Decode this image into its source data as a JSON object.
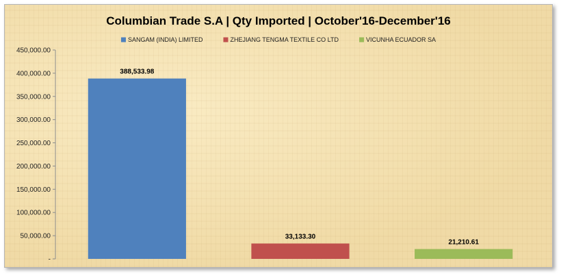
{
  "chart_data": {
    "type": "bar",
    "title": "Columbian Trade S.A | Qty Imported | October'16-December'16",
    "categories": [
      "SANGAM (INDIA) LIMITED",
      "ZHEJIANG TENGMA  TEXTILE CO LTD",
      "VICUNHA ECUADOR SA"
    ],
    "values": [
      388533.98,
      33133.3,
      21210.61
    ],
    "data_labels": [
      "388,533.98",
      "33,133.30",
      "21,210.61"
    ],
    "colors": [
      "#4f81bd",
      "#c0504d",
      "#9bbb59"
    ],
    "ylim": [
      0,
      450000
    ],
    "yticks": [
      0,
      50000,
      100000,
      150000,
      200000,
      250000,
      300000,
      350000,
      400000,
      450000
    ],
    "ytick_labels": [
      "-",
      "50,000.00",
      "100,000.00",
      "150,000.00",
      "200,000.00",
      "250,000.00",
      "300,000.00",
      "350,000.00",
      "400,000.00",
      "450,000.00"
    ],
    "legend_position": "top",
    "grid": false
  }
}
